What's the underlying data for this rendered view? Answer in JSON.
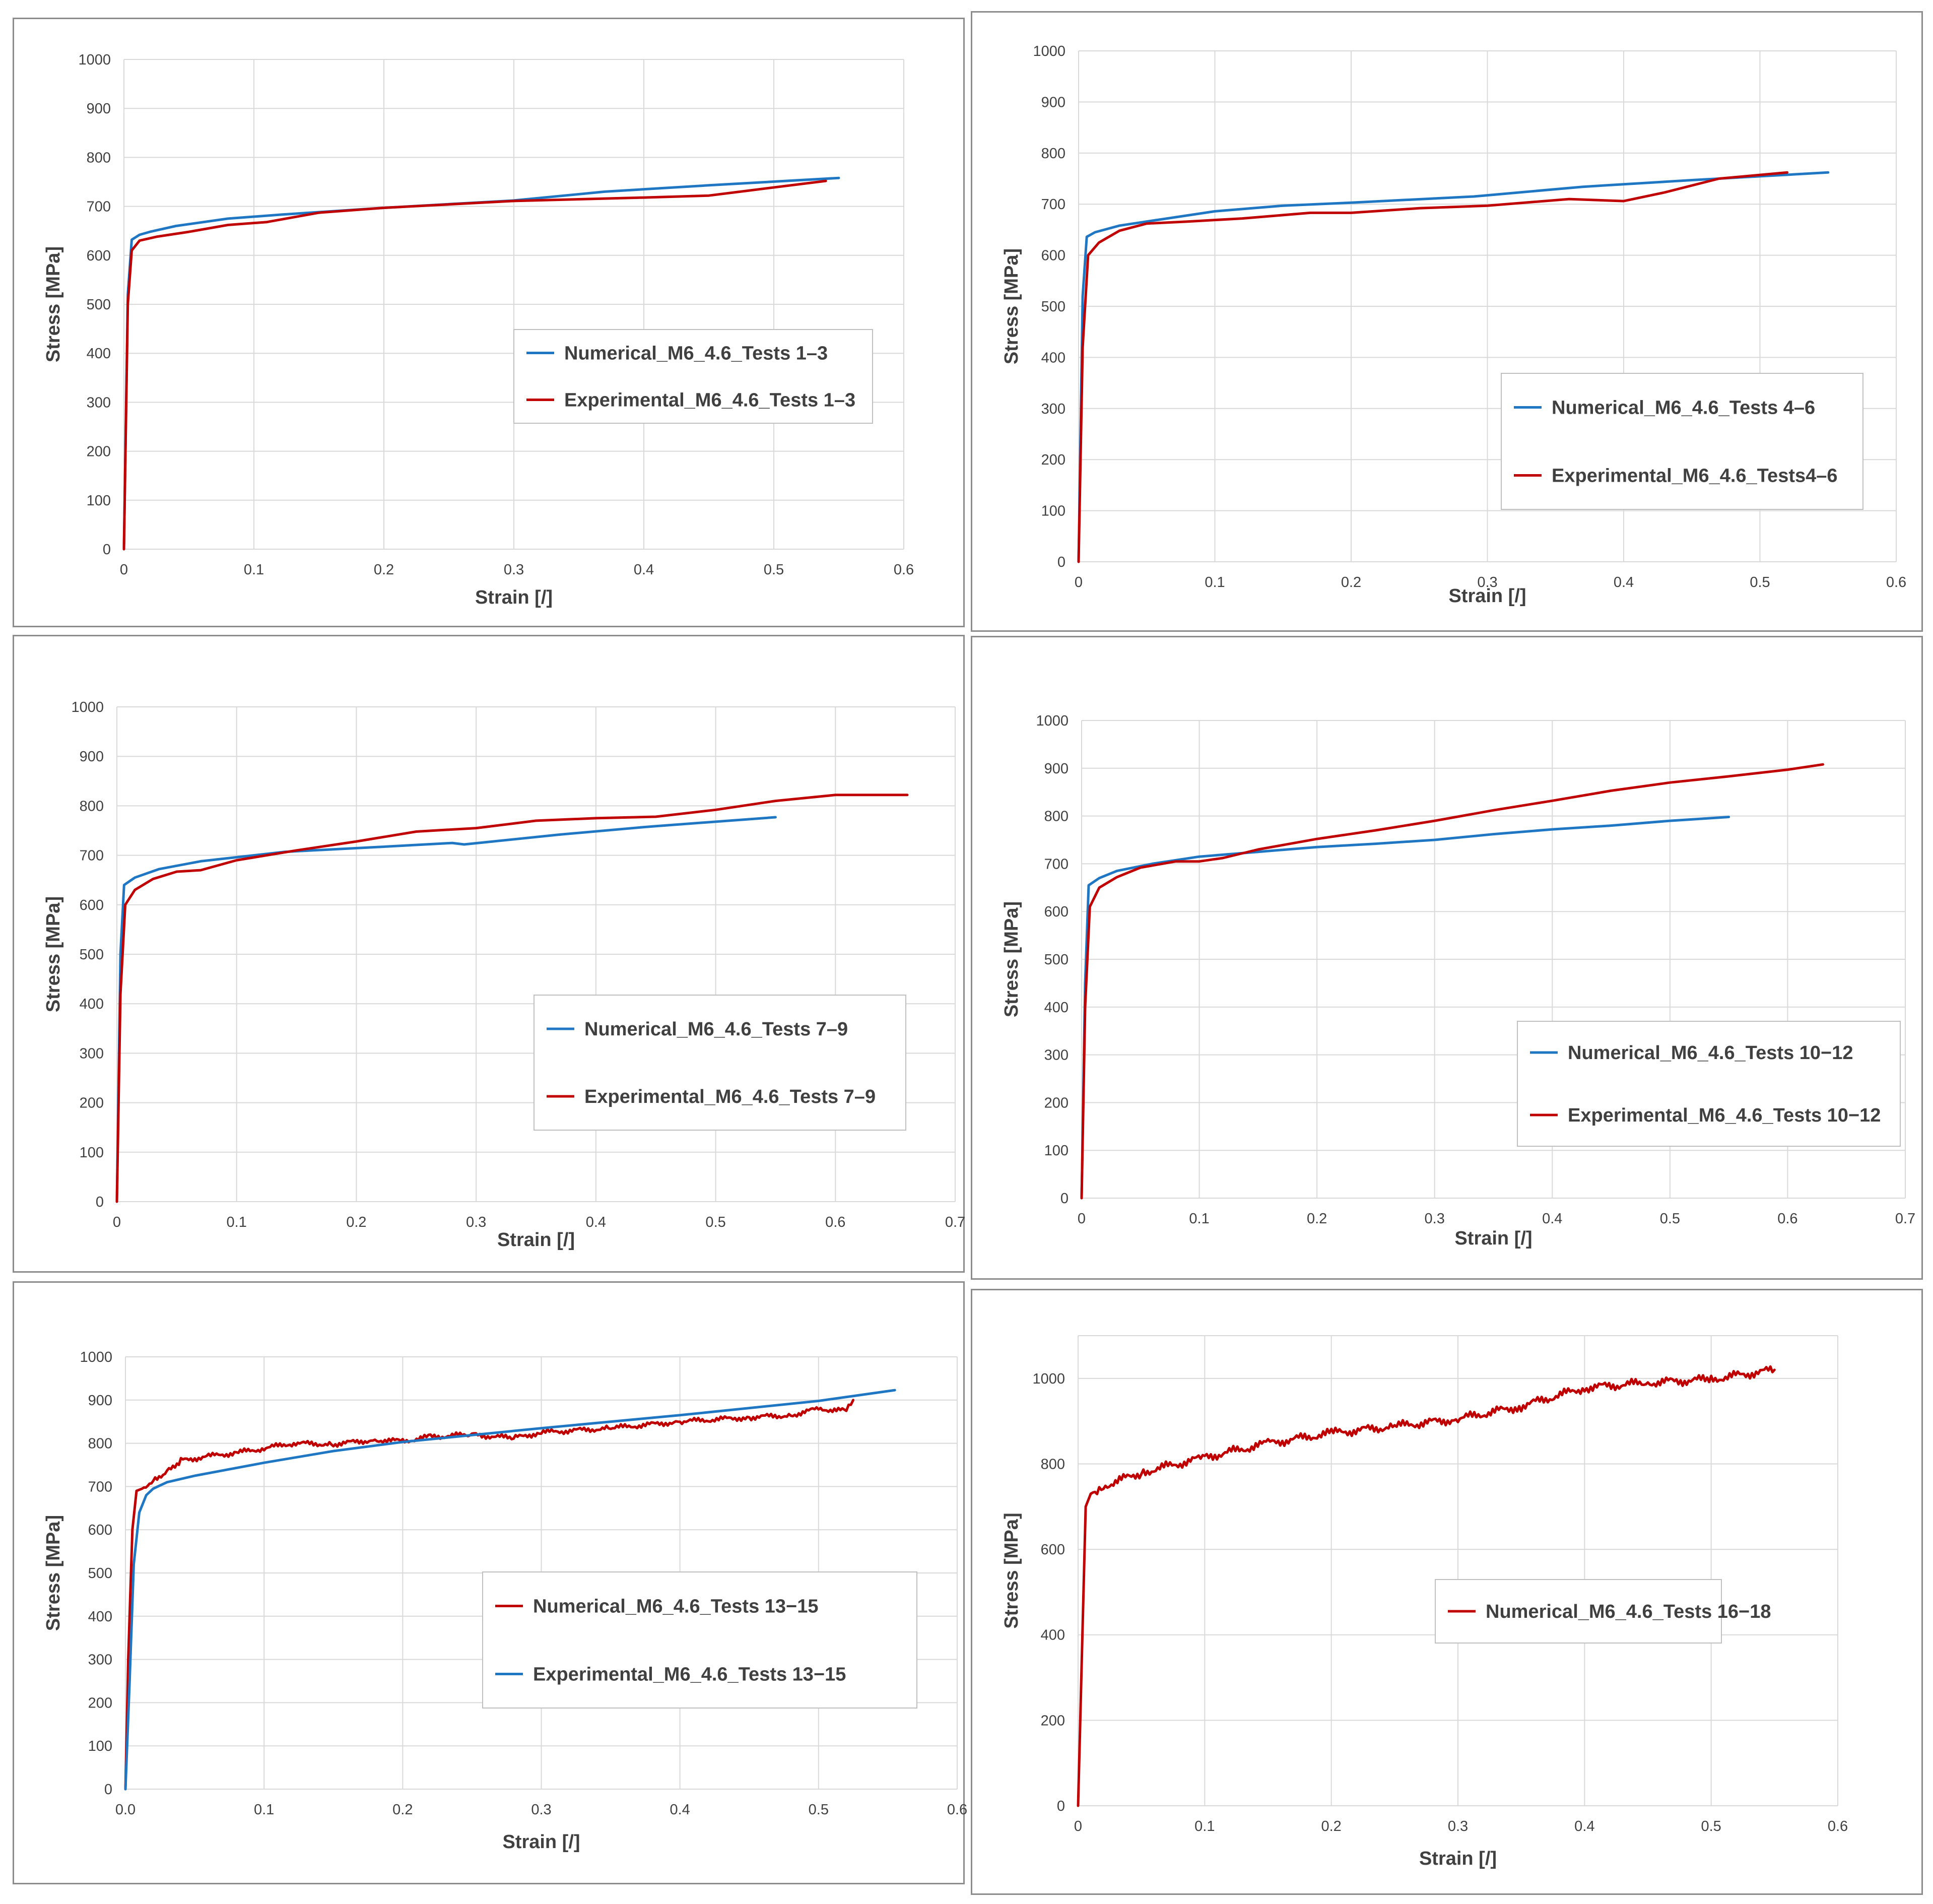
{
  "colors": {
    "numerical_blue": "#1f77c4",
    "experimental_red": "#c00000",
    "grid": "#d9d9d9",
    "text": "#404040"
  },
  "chart_data": [
    {
      "type": "line",
      "title": "",
      "xlabel": "Strain [/]",
      "ylabel": "Stress   [MPa]",
      "xlim": [
        0,
        0.6
      ],
      "ylim": [
        0,
        1000
      ],
      "xticks": [
        "0",
        "0.1",
        "0.2",
        "0.3",
        "0.4",
        "0.5",
        "0.6"
      ],
      "yticks": [
        "0",
        "100",
        "200",
        "300",
        "400",
        "500",
        "600",
        "700",
        "800",
        "900",
        "1000"
      ],
      "grid": true,
      "legend_position": "center-right",
      "series": [
        {
          "name": "Numerical_M6_4.6_Tests 1–3",
          "color": "#1f77c4",
          "x": [
            0,
            0.003,
            0.006,
            0.012,
            0.02,
            0.04,
            0.08,
            0.12,
            0.2,
            0.3,
            0.37,
            0.45,
            0.55
          ],
          "y": [
            0,
            520,
            632,
            642,
            648,
            660,
            675,
            683,
            697,
            712,
            730,
            743,
            758
          ]
        },
        {
          "name": "Experimental_M6_4.6_Tests 1–3",
          "color": "#c00000",
          "x": [
            0,
            0.003,
            0.006,
            0.012,
            0.025,
            0.05,
            0.08,
            0.11,
            0.15,
            0.2,
            0.3,
            0.4,
            0.45,
            0.54
          ],
          "y": [
            0,
            500,
            610,
            630,
            638,
            648,
            662,
            668,
            687,
            697,
            711,
            718,
            722,
            752
          ]
        }
      ]
    },
    {
      "type": "line",
      "title": "",
      "xlabel": "Strain  [/]",
      "ylabel": "Stress   [MPa]",
      "xlim": [
        0,
        0.6
      ],
      "ylim": [
        0,
        1000
      ],
      "xticks": [
        "0",
        "0.1",
        "0.2",
        "0.3",
        "0.4",
        "0.5",
        "0.6"
      ],
      "yticks": [
        "0",
        "100",
        "200",
        "300",
        "400",
        "500",
        "600",
        "700",
        "800",
        "900",
        "1000"
      ],
      "grid": true,
      "legend_position": "center-right",
      "series": [
        {
          "name": "Numerical_M6_4.6_Tests 4–6",
          "color": "#1f77c4",
          "x": [
            0,
            0.003,
            0.006,
            0.012,
            0.03,
            0.06,
            0.1,
            0.15,
            0.2,
            0.29,
            0.37,
            0.45,
            0.55
          ],
          "y": [
            0,
            520,
            636,
            645,
            658,
            670,
            686,
            697,
            703,
            715,
            734,
            747,
            762
          ]
        },
        {
          "name": "Experimental_M6_4.6_Tests4–6",
          "color": "#c00000",
          "x": [
            0,
            0.003,
            0.007,
            0.015,
            0.03,
            0.05,
            0.08,
            0.12,
            0.17,
            0.2,
            0.25,
            0.3,
            0.36,
            0.4,
            0.43,
            0.47,
            0.52
          ],
          "y": [
            0,
            420,
            600,
            625,
            648,
            662,
            666,
            672,
            683,
            683,
            692,
            697,
            710,
            706,
            723,
            750,
            762
          ]
        }
      ]
    },
    {
      "type": "line",
      "title": "",
      "xlabel": "Strain  [/]",
      "ylabel": "Stress   [MPa]",
      "xlim": [
        0,
        0.7
      ],
      "ylim": [
        0,
        1000
      ],
      "xticks": [
        "0",
        "0.1",
        "0.2",
        "0.3",
        "0.4",
        "0.5",
        "0.6",
        "0.7"
      ],
      "yticks": [
        "0",
        "100",
        "200",
        "300",
        "400",
        "500",
        "600",
        "700",
        "800",
        "900",
        "1000"
      ],
      "grid": true,
      "legend_position": "center-right",
      "series": [
        {
          "name": "Numerical_M6_4.6_Tests 7–9",
          "color": "#1f77c4",
          "x": [
            0,
            0.003,
            0.006,
            0.015,
            0.035,
            0.07,
            0.14,
            0.22,
            0.28,
            0.29,
            0.37,
            0.44,
            0.45,
            0.55
          ],
          "y": [
            0,
            500,
            640,
            655,
            672,
            688,
            707,
            717,
            725,
            722,
            742,
            757,
            759,
            777
          ]
        },
        {
          "name": "Experimental_M6_4.6_Tests 7–9",
          "color": "#c00000",
          "x": [
            0,
            0.003,
            0.007,
            0.015,
            0.03,
            0.05,
            0.07,
            0.1,
            0.15,
            0.2,
            0.25,
            0.3,
            0.35,
            0.4,
            0.45,
            0.5,
            0.55,
            0.6,
            0.66
          ],
          "y": [
            0,
            420,
            600,
            630,
            652,
            667,
            670,
            690,
            710,
            728,
            748,
            755,
            770,
            775,
            778,
            792,
            810,
            822,
            822
          ]
        }
      ]
    },
    {
      "type": "line",
      "title": "",
      "xlabel": "Strain  [/]",
      "ylabel": "Stress   [MPa]",
      "xlim": [
        0,
        0.7
      ],
      "ylim": [
        0,
        1000
      ],
      "xticks": [
        "0",
        "0.1",
        "0.2",
        "0.3",
        "0.4",
        "0.5",
        "0.6",
        "0.7"
      ],
      "yticks": [
        "0",
        "100",
        "200",
        "300",
        "400",
        "500",
        "600",
        "700",
        "800",
        "900",
        "1000"
      ],
      "grid": true,
      "legend_position": "center-right",
      "series": [
        {
          "name": "Numerical_M6_4.6_Tests 10−12",
          "color": "#1f77c4",
          "x": [
            0,
            0.003,
            0.006,
            0.015,
            0.03,
            0.06,
            0.1,
            0.15,
            0.2,
            0.25,
            0.3,
            0.35,
            0.4,
            0.45,
            0.5,
            0.55
          ],
          "y": [
            0,
            450,
            655,
            670,
            685,
            700,
            715,
            725,
            735,
            742,
            750,
            762,
            772,
            780,
            790,
            798
          ]
        },
        {
          "name": "Experimental_M6_4.6_Tests 10−12",
          "color": "#c00000",
          "x": [
            0,
            0.003,
            0.007,
            0.015,
            0.03,
            0.05,
            0.08,
            0.1,
            0.12,
            0.15,
            0.2,
            0.25,
            0.3,
            0.35,
            0.4,
            0.45,
            0.5,
            0.55,
            0.6,
            0.63
          ],
          "y": [
            0,
            400,
            610,
            650,
            672,
            692,
            705,
            705,
            712,
            730,
            752,
            770,
            790,
            812,
            832,
            853,
            870,
            883,
            897,
            908
          ]
        }
      ]
    },
    {
      "type": "line",
      "title": "",
      "xlabel": "Strain [/]",
      "ylabel": "Stress   [MPa]",
      "xlim": [
        0,
        0.6
      ],
      "ylim": [
        0,
        1000
      ],
      "xticks": [
        "0.0",
        "0.1",
        "0.2",
        "0.3",
        "0.4",
        "0.5",
        "0.6"
      ],
      "yticks": [
        "0",
        "100",
        "200",
        "300",
        "400",
        "500",
        "600",
        "700",
        "800",
        "900",
        "1000"
      ],
      "grid": true,
      "legend_position": "center-right",
      "series": [
        {
          "name": "Numerical_M6_4.6_Tests 13−15",
          "color": "#c00000",
          "jitter": 7,
          "x": [
            0,
            0.002,
            0.005,
            0.008,
            0.012,
            0.02,
            0.03,
            0.04,
            0.06,
            0.08,
            0.1,
            0.12,
            0.15,
            0.18,
            0.2,
            0.22,
            0.25,
            0.28,
            0.3,
            0.35,
            0.4,
            0.45,
            0.48,
            0.5,
            0.52,
            0.525
          ],
          "y": [
            0,
            300,
            600,
            690,
            695,
            715,
            735,
            760,
            770,
            778,
            788,
            800,
            798,
            808,
            805,
            815,
            820,
            812,
            825,
            835,
            850,
            860,
            865,
            880,
            875,
            900
          ]
        },
        {
          "name": "Experimental_M6_4.6_Tests 13−15",
          "color": "#1f77c4",
          "x": [
            0,
            0.003,
            0.006,
            0.01,
            0.015,
            0.02,
            0.03,
            0.05,
            0.1,
            0.15,
            0.2,
            0.3,
            0.4,
            0.5,
            0.555
          ],
          "y": [
            0,
            250,
            520,
            640,
            680,
            695,
            710,
            725,
            755,
            782,
            803,
            835,
            865,
            898,
            923
          ]
        }
      ]
    },
    {
      "type": "line",
      "title": "",
      "xlabel": "Strain [/]",
      "ylabel": "Stress   [MPa]",
      "xlim": [
        0,
        0.6
      ],
      "ylim": [
        0,
        1100
      ],
      "xticks": [
        "0",
        "0.1",
        "0.2",
        "0.3",
        "0.4",
        "0.5",
        "0.6"
      ],
      "yticks": [
        "0",
        "200",
        "400",
        "600",
        "800",
        "1000"
      ],
      "ytick_values": [
        0,
        200,
        400,
        600,
        800,
        1000
      ],
      "grid": true,
      "legend_position": "center-right",
      "series": [
        {
          "name": "Numerical_M6_4.6_Tests 16−18",
          "color": "#c00000",
          "jitter": 12,
          "x": [
            0,
            0.003,
            0.006,
            0.01,
            0.02,
            0.05,
            0.1,
            0.15,
            0.2,
            0.25,
            0.3,
            0.35,
            0.4,
            0.45,
            0.5,
            0.55
          ],
          "y": [
            0,
            350,
            700,
            730,
            748,
            780,
            815,
            848,
            872,
            888,
            905,
            935,
            978,
            990,
            998,
            1020
          ]
        }
      ]
    }
  ]
}
